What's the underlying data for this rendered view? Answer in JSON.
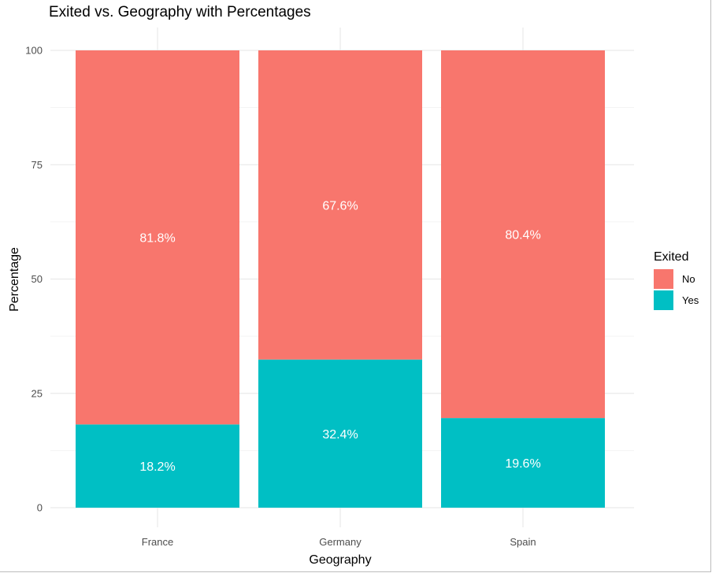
{
  "chart_data": {
    "type": "bar",
    "stacked": true,
    "title": "Exited vs. Geography with Percentages",
    "xlabel": "Geography",
    "ylabel": "Percentage",
    "categories": [
      "France",
      "Germany",
      "Spain"
    ],
    "series": [
      {
        "name": "No",
        "color": "#F8766D",
        "values": [
          81.8,
          67.6,
          80.4
        ],
        "labels": [
          "81.8%",
          "67.6%",
          "80.4%"
        ]
      },
      {
        "name": "Yes",
        "color": "#00BFC4",
        "values": [
          18.2,
          32.4,
          19.6
        ],
        "labels": [
          "18.2%",
          "32.4%",
          "19.6%"
        ]
      }
    ],
    "ylim": [
      0,
      100
    ],
    "yticks": [
      0,
      25,
      50,
      75,
      100
    ],
    "grid": true,
    "legend": {
      "title": "Exited",
      "position": "right"
    }
  }
}
